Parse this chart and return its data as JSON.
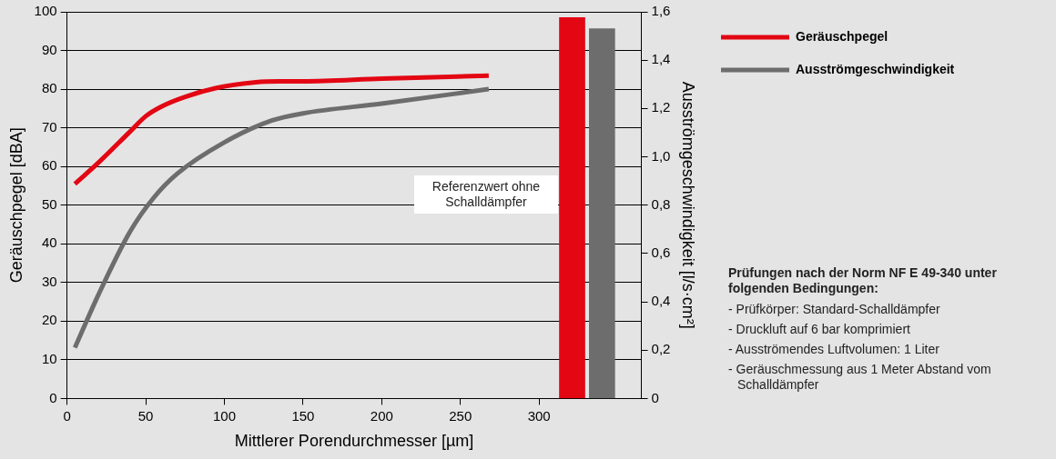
{
  "chart_data": {
    "type": "line",
    "xlabel": "Mittlerer Porendurchmesser [µm]",
    "ylabel": "Geräuschpegel [dBA]",
    "y2label": "Ausströmgeschwindigkeit [l/s·cm²]",
    "xlim": [
      0,
      365
    ],
    "xticks": [
      0,
      50,
      100,
      150,
      200,
      250,
      300
    ],
    "ylim": [
      0,
      100
    ],
    "yticks": [
      0,
      10,
      20,
      30,
      40,
      50,
      60,
      70,
      80,
      90,
      100
    ],
    "y2lim": [
      0,
      1.6
    ],
    "y2ticks": [
      0,
      {
        "value": 0.2,
        "label": "0,2"
      },
      {
        "value": 0.4,
        "label": "0,4"
      },
      {
        "value": 0.6,
        "label": "0,6"
      },
      {
        "value": 0.8,
        "label": "0,8"
      },
      {
        "value": 1.0,
        "label": "1,0"
      },
      {
        "value": 1.2,
        "label": "1,2"
      },
      {
        "value": 1.4,
        "label": "1,4"
      },
      {
        "value": 1.6,
        "label": "1,6"
      }
    ],
    "grid": "y",
    "legend": "right",
    "series": [
      {
        "name": "Geräuschpegel",
        "color": "#e30613",
        "x": [
          5,
          20,
          40,
          50,
          60,
          75,
          95,
          120,
          135,
          150,
          200,
          268
        ],
        "values": [
          55.5,
          61,
          69,
          73,
          75.5,
          78,
          80.3,
          81.8,
          82,
          82,
          82.7,
          83.5
        ]
      },
      {
        "name": "Ausströmgeschwindigkeit",
        "color": "#6d6d6d",
        "axis": "y2",
        "x": [
          5,
          20,
          40,
          55,
          70,
          100,
          130,
          150,
          200,
          268
        ],
        "values": [
          0.21,
          0.43,
          0.69,
          0.83,
          0.93,
          1.06,
          1.15,
          1.18,
          1.22,
          1.28
        ]
      },
      {
        "type": "bar",
        "color": "#e30613",
        "x": [
          321
        ],
        "values": [
          98.5
        ]
      },
      {
        "type": "bar",
        "color": "#6d6d6d",
        "axis": "y2",
        "x": [
          340
        ],
        "values": [
          1.53
        ]
      }
    ],
    "annotations": [
      "Referenzwert ohne Schalldämpfer",
      "Prüfungen nach der Norm NF E 49-340 unter folgenden Bedingungen:",
      "- Prüfkörper: Standard-Schalldämpfer",
      "- Druckluft auf 6 bar komprimiert",
      "- Ausströmendes Luftvolumen: 1 Liter",
      "- Geräuschmessung aus 1 Meter Abstand vom Schalldämpfer"
    ]
  }
}
